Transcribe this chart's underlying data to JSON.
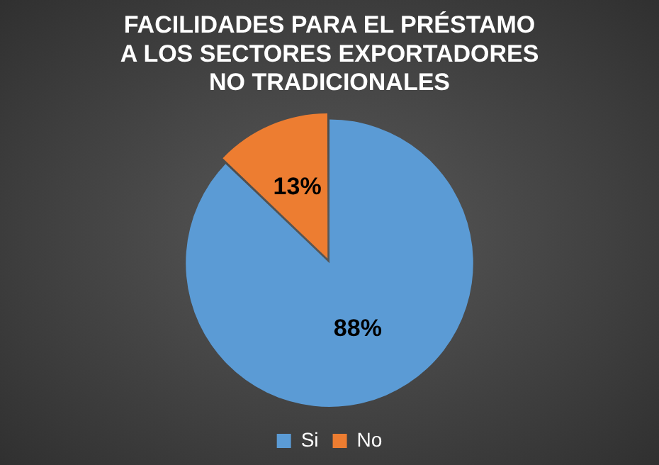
{
  "chart_data": {
    "type": "pie",
    "title": "FACILIDADES PARA EL PRÉSTAMO\nA LOS SECTORES EXPORTADORES\nNO TRADICIONALES",
    "categories": [
      "Si",
      "No"
    ],
    "values": [
      88,
      13
    ],
    "colors": [
      "#5b9bd5",
      "#ed7d31"
    ],
    "value_labels": [
      "88%",
      "13%"
    ],
    "legend": "bottom"
  }
}
